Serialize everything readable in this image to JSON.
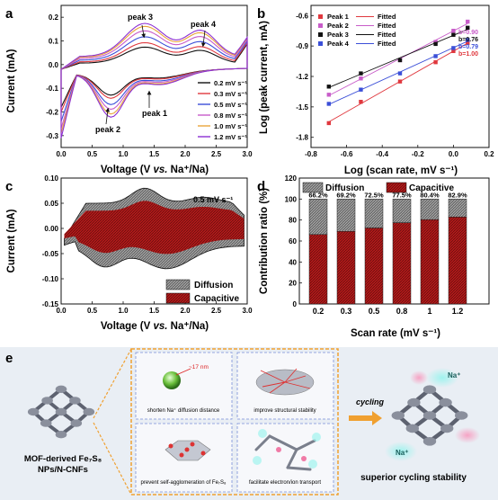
{
  "panel_a": {
    "letter": "a",
    "peaks": [
      "peak 3",
      "peak 4",
      "peak 1",
      "peak 2"
    ],
    "legend": [
      "0.2 mV s⁻¹",
      "0.3 mV s⁻¹",
      "0.5 mV s⁻¹",
      "0.8 mV s⁻¹",
      "1.0 mV s⁻¹",
      "1.2 mV s⁻¹"
    ],
    "legend_colors": [
      "#111111",
      "#e0383e",
      "#3b4fd8",
      "#c85cc9",
      "#e9a53a",
      "#8c2fd3"
    ]
  },
  "panel_b": {
    "letter": "b",
    "legend": [
      {
        "name": "Peak 1",
        "fit": "Fitted",
        "color": "#e0383e"
      },
      {
        "name": "Peak 2",
        "fit": "Fitted",
        "color": "#c85cc9"
      },
      {
        "name": "Peak 3",
        "fit": "Fitted",
        "color": "#111111"
      },
      {
        "name": "Peak 4",
        "fit": "Fitted",
        "color": "#3b4fd8"
      }
    ],
    "b_values": [
      {
        "text": "b=0.90",
        "color": "#c85cc9"
      },
      {
        "text": "b=0.76",
        "color": "#111111"
      },
      {
        "text": "b=0.79",
        "color": "#3b4fd8"
      },
      {
        "text": "b=1.00",
        "color": "#e0383e"
      }
    ]
  },
  "panel_c": {
    "letter": "c",
    "rate_label": "0.5 mV s⁻¹",
    "legend": [
      "Diffusion",
      "Capacitive"
    ]
  },
  "panel_d": {
    "letter": "d",
    "legend": [
      "Diffusion",
      "Capacitive"
    ]
  },
  "panel_e": {
    "letter": "e",
    "size_label": "~17 nm",
    "box_texts": [
      "shorten Na⁺ diffusion distance",
      "improve structural stability",
      "prevent self-agglomeration of Fe₇S₈",
      "facilitate electron/ion transport"
    ],
    "cycling": "cycling",
    "left_caption_1": "MOF-derived Fe₇S₈",
    "left_caption_2": "NPs/N-CNFs",
    "right_caption": "superior cycling stability",
    "na_labels": [
      "Na⁺",
      "Na⁺"
    ]
  },
  "chart_data": [
    {
      "type": "line",
      "panel": "a",
      "xlabel": "Voltage (V vs. Na⁺/Na)",
      "ylabel": "Current (mA)",
      "xlim": [
        0.0,
        3.0
      ],
      "ylim": [
        -0.35,
        0.25
      ],
      "xticks": [
        0.0,
        0.5,
        1.0,
        1.5,
        2.0,
        2.5,
        3.0
      ],
      "yticks": [
        -0.3,
        -0.2,
        -0.1,
        0.0,
        0.1,
        0.2
      ],
      "series": [
        {
          "name": "0.2 mV s⁻¹",
          "peak_ox": 0.075,
          "peak_red": -0.14,
          "start": -0.18
        },
        {
          "name": "0.3 mV s⁻¹",
          "peak_ox": 0.09,
          "peak_red": -0.16,
          "start": -0.2
        },
        {
          "name": "0.5 mV s⁻¹",
          "peak_ox": 0.11,
          "peak_red": -0.2,
          "start": -0.24
        },
        {
          "name": "0.8 mV s⁻¹",
          "peak_ox": 0.13,
          "peak_red": -0.23,
          "start": -0.27
        },
        {
          "name": "1.0 mV s⁻¹",
          "peak_ox": 0.145,
          "peak_red": -0.26,
          "start": -0.29
        },
        {
          "name": "1.2 mV s⁻¹",
          "peak_ox": 0.155,
          "peak_red": -0.28,
          "start": -0.31
        }
      ]
    },
    {
      "type": "scatter",
      "panel": "b",
      "xlabel": "Log (scan rate, mV s⁻¹)",
      "ylabel": "Log (peak current, mA)",
      "xlim": [
        -0.8,
        0.2
      ],
      "ylim": [
        -1.9,
        -0.5
      ],
      "xticks": [
        -0.8,
        -0.6,
        -0.4,
        -0.2,
        0.0,
        0.2
      ],
      "yticks": [
        -1.8,
        -1.5,
        -1.2,
        -0.9,
        -0.6
      ],
      "x": [
        -0.7,
        -0.52,
        -0.3,
        -0.1,
        0.0,
        0.08
      ],
      "series": [
        {
          "name": "Peak 1",
          "values": [
            -1.66,
            -1.45,
            -1.25,
            -1.06,
            -0.95,
            -0.87
          ]
        },
        {
          "name": "Peak 2",
          "values": [
            -1.38,
            -1.22,
            -1.04,
            -0.86,
            -0.75,
            -0.66
          ]
        },
        {
          "name": "Peak 3",
          "values": [
            -1.3,
            -1.17,
            -1.04,
            -0.88,
            -0.79,
            -0.72
          ]
        },
        {
          "name": "Peak 4",
          "values": [
            -1.47,
            -1.33,
            -1.17,
            -1.0,
            -0.92,
            -0.84
          ]
        }
      ]
    },
    {
      "type": "area",
      "panel": "c",
      "xlabel": "Voltage (V vs. Na⁺/Na)",
      "ylabel": "Current (mA)",
      "xlim": [
        0.0,
        3.0
      ],
      "ylim": [
        -0.15,
        0.1
      ],
      "xticks": [
        0.0,
        0.5,
        1.0,
        1.5,
        2.0,
        2.5,
        3.0
      ],
      "yticks": [
        -0.15,
        -0.1,
        -0.05,
        0.0,
        0.05,
        0.1
      ],
      "series": [
        {
          "name": "Diffusion"
        },
        {
          "name": "Capacitive"
        }
      ]
    },
    {
      "type": "bar",
      "panel": "d",
      "xlabel": "Scan rate (mV s⁻¹)",
      "ylabel": "Contribution ratio (%)",
      "ylim": [
        0,
        120
      ],
      "yticks": [
        0,
        20,
        40,
        60,
        80,
        100,
        120
      ],
      "categories": [
        "0.2",
        "0.3",
        "0.5",
        "0.8",
        "1",
        "1.2"
      ],
      "series": [
        {
          "name": "Capacitive",
          "values": [
            66.2,
            69.2,
            72.5,
            77.5,
            80.4,
            82.9
          ]
        },
        {
          "name": "Diffusion",
          "values": [
            33.8,
            30.8,
            27.5,
            22.5,
            19.6,
            17.1
          ]
        }
      ],
      "labels": [
        "66.2%",
        "69.2%",
        "72.5%",
        "77.5%",
        "80.4%",
        "82.9%"
      ]
    }
  ]
}
